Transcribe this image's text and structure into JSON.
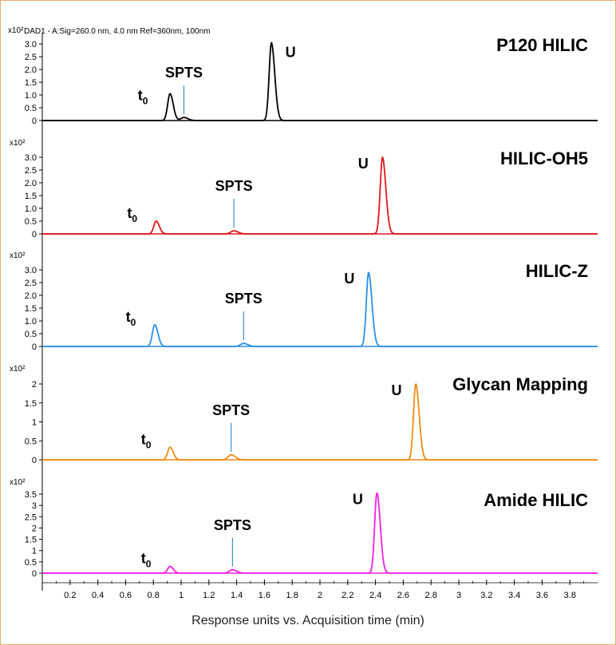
{
  "header": "DAD1 - A:Sig=260.0 nm, 4.0 nm  Ref=360nm, 100nm",
  "x_axis_label": "Response units vs. Acquisition time (min)",
  "peak_labels": {
    "t0_main": "t",
    "t0_sub": "0",
    "spts": "SPTS",
    "u": "U"
  },
  "chart_data": {
    "type": "line",
    "x_range": [
      0,
      4.0
    ],
    "x_ticks": [
      "0.2",
      "0.4",
      "0.6",
      "0.8",
      "1",
      "1.2",
      "1.4",
      "1.6",
      "1.8",
      "2",
      "2.2",
      "2.4",
      "2.6",
      "2.8",
      "3",
      "3.2",
      "3.4",
      "3.6",
      "3.8"
    ],
    "xlabel": "Response units vs. Acquisition time (min)",
    "panels": [
      {
        "title": "P120 HILIC",
        "color": "#000000",
        "scale": "x10²",
        "y_range": [
          0,
          3.0
        ],
        "y_ticks": [
          "0",
          "0.5",
          "1.0",
          "1.5",
          "2.0",
          "2.5",
          "3.0"
        ],
        "peaks": [
          {
            "label": "t0",
            "x": 0.92,
            "y": 1.05
          },
          {
            "label": "SPTS",
            "x": 1.02,
            "y": 0.12
          },
          {
            "label": "U",
            "x": 1.65,
            "y": 3.05
          }
        ]
      },
      {
        "title": "HILIC-OH5",
        "color": "#e0161b",
        "scale": "x10²",
        "y_range": [
          0,
          3.0
        ],
        "y_ticks": [
          "0",
          "0.5",
          "1.0",
          "1.5",
          "2.0",
          "2.5",
          "3.0"
        ],
        "peaks": [
          {
            "label": "t0",
            "x": 0.82,
            "y": 0.5
          },
          {
            "label": "SPTS",
            "x": 1.38,
            "y": 0.12
          },
          {
            "label": "U",
            "x": 2.45,
            "y": 3.0
          }
        ]
      },
      {
        "title": "HILIC-Z",
        "color": "#2b8fe6",
        "scale": "x10²",
        "y_range": [
          0,
          3.0
        ],
        "y_ticks": [
          "0",
          "0.5",
          "1.0",
          "1.5",
          "2.0",
          "2.5",
          "3.0"
        ],
        "peaks": [
          {
            "label": "t0",
            "x": 0.81,
            "y": 0.85
          },
          {
            "label": "SPTS",
            "x": 1.45,
            "y": 0.12
          },
          {
            "label": "U",
            "x": 2.35,
            "y": 2.9
          }
        ]
      },
      {
        "title": "Glycan Mapping",
        "color": "#f28a12",
        "scale": "x10²",
        "y_range": [
          0,
          2.0
        ],
        "y_ticks": [
          "0",
          "0.5",
          "1",
          "1.5",
          "2"
        ],
        "peaks": [
          {
            "label": "t0",
            "x": 0.92,
            "y": 0.33
          },
          {
            "label": "SPTS",
            "x": 1.36,
            "y": 0.13
          },
          {
            "label": "U",
            "x": 2.69,
            "y": 2.0
          }
        ]
      },
      {
        "title": "Amide HILIC",
        "color": "#f21fe6",
        "scale": "x10²",
        "y_range": [
          0,
          3.5
        ],
        "y_ticks": [
          "0",
          "0.5",
          "1",
          "1.5",
          "2",
          "2.5",
          "3",
          "3.5"
        ],
        "peaks": [
          {
            "label": "t0",
            "x": 0.92,
            "y": 0.3
          },
          {
            "label": "SPTS",
            "x": 1.37,
            "y": 0.15
          },
          {
            "label": "U",
            "x": 2.41,
            "y": 3.55
          }
        ]
      }
    ]
  }
}
